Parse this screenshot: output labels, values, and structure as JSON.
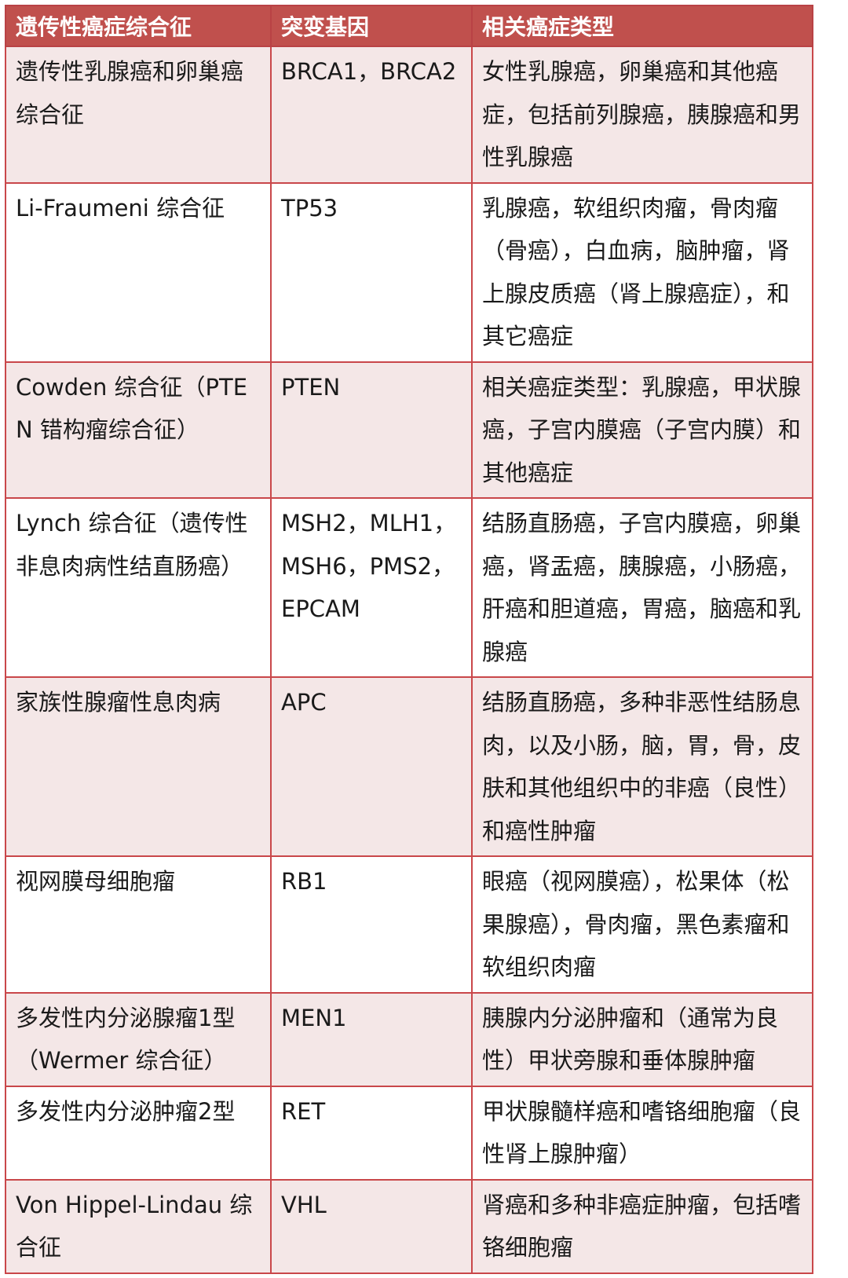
{
  "header": {
    "syndrome": "遗传性癌症综合征",
    "gene": "突变基因",
    "cancers": "相关癌症类型"
  },
  "rows": [
    {
      "syndrome": "遗传性乳腺癌和卵巢癌综合征",
      "gene": "BRCA1，BRCA2",
      "cancers": "女性乳腺癌，卵巢癌和其他癌症，包括前列腺癌，胰腺癌和男性乳腺癌"
    },
    {
      "syndrome": "Li-Fraumeni 综合征",
      "gene": "TP53",
      "cancers": "乳腺癌，软组织肉瘤，骨肉瘤（骨癌），白血病，脑肿瘤，肾上腺皮质癌（肾上腺癌症），和其它癌症"
    },
    {
      "syndrome": "Cowden 综合征（PTEN 错构瘤综合征）",
      "gene": "PTEN",
      "cancers": "相关癌症类型：乳腺癌，甲状腺癌，子宫内膜癌（子宫内膜）和其他癌症"
    },
    {
      "syndrome": "Lynch 综合征（遗传性非息肉病性结直肠癌）",
      "gene": "MSH2，MLH1，MSH6，PMS2，EPCAM",
      "cancers": "结肠直肠癌，子宫内膜癌，卵巢癌，肾盂癌，胰腺癌，小肠癌，肝癌和胆道癌，胃癌，脑癌和乳腺癌"
    },
    {
      "syndrome": "家族性腺瘤性息肉病",
      "gene": "APC",
      "cancers": "结肠直肠癌，多种非恶性结肠息肉，以及小肠，脑，胃，骨，皮肤和其他组织中的非癌（良性）和癌性肿瘤"
    },
    {
      "syndrome": "视网膜母细胞瘤",
      "gene": "RB1",
      "cancers": "眼癌（视网膜癌），松果体（松果腺癌），骨肉瘤，黑色素瘤和软组织肉瘤"
    },
    {
      "syndrome": "多发性内分泌腺瘤1型（Wermer 综合征）",
      "gene": "MEN1",
      "cancers": "胰腺内分泌肿瘤和（通常为良性）甲状旁腺和垂体腺肿瘤"
    },
    {
      "syndrome": "多发性内分泌肿瘤2型",
      "gene": "RET",
      "cancers": "甲状腺髓样癌和嗜铬细胞瘤（良性肾上腺肿瘤）"
    },
    {
      "syndrome": "Von Hippel-Lindau 综合征",
      "gene": "VHL",
      "cancers": "肾癌和多种非癌症肿瘤，包括嗜铬细胞瘤"
    }
  ],
  "colors": {
    "header_bg": "#c0504d",
    "border": "#c9474a",
    "band": "#f4e7e7"
  }
}
